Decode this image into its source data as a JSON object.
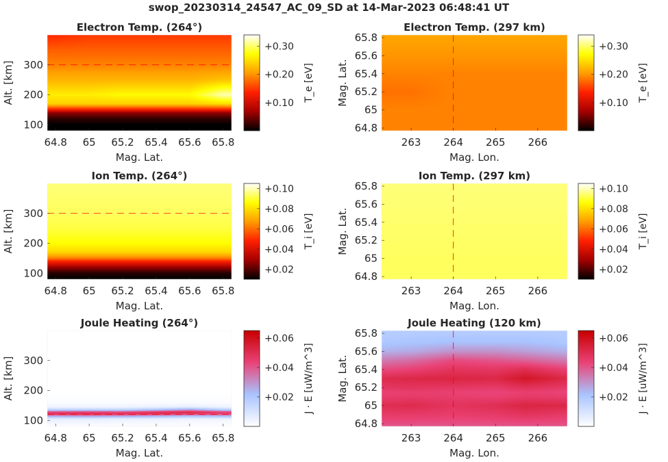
{
  "suptitle": "swop_20230314_24547_AC_09_SD at 14-Mar-2023 06:48:41 UT",
  "colors": {
    "hot_colormap": [
      "#000000",
      "#a50000",
      "#ff2000",
      "#ff9d00",
      "#ffff00",
      "#ffffff"
    ],
    "joule_colormap": [
      "#ffffff",
      "#a9c4ff",
      "#ea4377",
      "#c80000"
    ],
    "reference_line": "#ff0000"
  },
  "chart_data": [
    {
      "type": "heatmap",
      "title": "Electron Temp. (264°)",
      "xlabel": "Mag. Lat.",
      "ylabel": "Alt. [km]",
      "xlim": [
        64.75,
        65.85
      ],
      "ylim": [
        80,
        400
      ],
      "xticks": [
        "64.8",
        "65",
        "65.2",
        "65.4",
        "65.6",
        "65.8"
      ],
      "xtick_values": [
        64.8,
        65.0,
        65.2,
        65.4,
        65.6,
        65.8
      ],
      "yticks": [
        "100",
        "200",
        "300"
      ],
      "ytick_values": [
        100,
        200,
        300
      ],
      "reference_line": {
        "orientation": "horizontal",
        "value": 300
      },
      "colorbar": {
        "label": "T_e [eV]",
        "range": [
          0.0,
          0.34
        ],
        "ticks": [
          "+0.10",
          "+0.20",
          "+0.30"
        ],
        "tick_values": [
          0.1,
          0.2,
          0.3
        ],
        "colormap": "hot"
      },
      "field": {
        "x": [
          64.8,
          65.0,
          65.2,
          65.4,
          65.6,
          65.8
        ],
        "y": [
          400,
          350,
          300,
          250,
          200,
          170,
          150,
          140,
          120,
          100,
          80
        ],
        "z": [
          [
            0.14,
            0.15,
            0.15,
            0.15,
            0.15,
            0.15
          ],
          [
            0.17,
            0.17,
            0.17,
            0.17,
            0.17,
            0.17
          ],
          [
            0.19,
            0.19,
            0.19,
            0.19,
            0.19,
            0.19
          ],
          [
            0.22,
            0.22,
            0.22,
            0.22,
            0.22,
            0.23
          ],
          [
            0.26,
            0.26,
            0.27,
            0.27,
            0.27,
            0.32
          ],
          [
            0.24,
            0.24,
            0.24,
            0.24,
            0.24,
            0.25
          ],
          [
            0.13,
            0.13,
            0.13,
            0.13,
            0.13,
            0.13
          ],
          [
            0.06,
            0.06,
            0.06,
            0.06,
            0.06,
            0.06
          ],
          [
            0.02,
            0.02,
            0.02,
            0.02,
            0.02,
            0.02
          ],
          [
            0.0,
            0.0,
            0.0,
            0.0,
            0.0,
            0.0
          ],
          [
            0.0,
            0.0,
            0.0,
            0.0,
            0.0,
            0.0
          ]
        ]
      }
    },
    {
      "type": "heatmap",
      "title": "Electron Temp. (297 km)",
      "xlabel": "Mag. Lon.",
      "ylabel": "Mag. Lat.",
      "xlim": [
        262.3,
        266.7
      ],
      "ylim": [
        64.77,
        65.83
      ],
      "xticks": [
        "263",
        "264",
        "265",
        "266"
      ],
      "xtick_values": [
        263,
        264,
        265,
        266
      ],
      "yticks": [
        "64.8",
        "65",
        "65.2",
        "65.4",
        "65.6",
        "65.8"
      ],
      "ytick_values": [
        64.8,
        65.0,
        65.2,
        65.4,
        65.6,
        65.8
      ],
      "reference_line": {
        "orientation": "vertical",
        "value": 264
      },
      "colorbar": {
        "label": "T_e [eV]",
        "range": [
          0.0,
          0.34
        ],
        "ticks": [
          "+0.10",
          "+0.20",
          "+0.30"
        ],
        "tick_values": [
          0.1,
          0.2,
          0.3
        ],
        "colormap": "hot"
      },
      "field": {
        "x": [
          262.3,
          263.0,
          264.0,
          265.0,
          266.0,
          266.7
        ],
        "y": [
          65.83,
          65.6,
          65.4,
          65.2,
          65.0,
          64.77
        ],
        "z": [
          [
            0.21,
            0.21,
            0.21,
            0.21,
            0.21,
            0.21
          ],
          [
            0.2,
            0.2,
            0.2,
            0.2,
            0.2,
            0.2
          ],
          [
            0.19,
            0.19,
            0.19,
            0.19,
            0.19,
            0.19
          ],
          [
            0.18,
            0.18,
            0.19,
            0.19,
            0.19,
            0.19
          ],
          [
            0.19,
            0.19,
            0.19,
            0.19,
            0.19,
            0.19
          ],
          [
            0.19,
            0.19,
            0.19,
            0.19,
            0.19,
            0.19
          ]
        ]
      }
    },
    {
      "type": "heatmap",
      "title": "Ion Temp. (264°)",
      "xlabel": "Mag. Lat.",
      "ylabel": "Alt. [km]",
      "xlim": [
        64.75,
        65.85
      ],
      "ylim": [
        80,
        400
      ],
      "xticks": [
        "64.8",
        "65",
        "65.2",
        "65.4",
        "65.6",
        "65.8"
      ],
      "xtick_values": [
        64.8,
        65.0,
        65.2,
        65.4,
        65.6,
        65.8
      ],
      "yticks": [
        "100",
        "200",
        "300"
      ],
      "ytick_values": [
        100,
        200,
        300
      ],
      "reference_line": {
        "orientation": "horizontal",
        "value": 300
      },
      "colorbar": {
        "label": "T_i [eV]",
        "range": [
          0.01,
          0.105
        ],
        "ticks": [
          "+0.02",
          "+0.04",
          "+0.06",
          "+0.08",
          "+0.10"
        ],
        "tick_values": [
          0.02,
          0.04,
          0.06,
          0.08,
          0.1
        ],
        "colormap": "hot"
      },
      "field": {
        "x": [
          64.8,
          65.0,
          65.2,
          65.4,
          65.6,
          65.8
        ],
        "y": [
          400,
          300,
          250,
          200,
          170,
          150,
          140,
          120,
          100,
          80
        ],
        "z": [
          [
            0.095,
            0.095,
            0.095,
            0.095,
            0.095,
            0.095
          ],
          [
            0.093,
            0.093,
            0.093,
            0.093,
            0.093,
            0.093
          ],
          [
            0.091,
            0.091,
            0.091,
            0.091,
            0.091,
            0.091
          ],
          [
            0.086,
            0.086,
            0.086,
            0.086,
            0.086,
            0.086
          ],
          [
            0.078,
            0.078,
            0.078,
            0.078,
            0.078,
            0.078
          ],
          [
            0.062,
            0.062,
            0.062,
            0.062,
            0.062,
            0.062
          ],
          [
            0.048,
            0.048,
            0.048,
            0.048,
            0.048,
            0.048
          ],
          [
            0.028,
            0.028,
            0.028,
            0.028,
            0.028,
            0.028
          ],
          [
            0.014,
            0.014,
            0.014,
            0.014,
            0.014,
            0.014
          ],
          [
            0.01,
            0.01,
            0.01,
            0.01,
            0.01,
            0.01
          ]
        ]
      }
    },
    {
      "type": "heatmap",
      "title": "Ion Temp. (297 km)",
      "xlabel": "Mag. Lon.",
      "ylabel": "Mag. Lat.",
      "xlim": [
        262.3,
        266.7
      ],
      "ylim": [
        64.77,
        65.83
      ],
      "xticks": [
        "263",
        "264",
        "265",
        "266"
      ],
      "xtick_values": [
        263,
        264,
        265,
        266
      ],
      "yticks": [
        "64.8",
        "65",
        "65.2",
        "65.4",
        "65.6",
        "65.8"
      ],
      "ytick_values": [
        64.8,
        65.0,
        65.2,
        65.4,
        65.6,
        65.8
      ],
      "reference_line": {
        "orientation": "vertical",
        "value": 264
      },
      "colorbar": {
        "label": "T_i [eV]",
        "range": [
          0.01,
          0.105
        ],
        "ticks": [
          "+0.02",
          "+0.04",
          "+0.06",
          "+0.08",
          "+0.10"
        ],
        "tick_values": [
          0.02,
          0.04,
          0.06,
          0.08,
          0.1
        ],
        "colormap": "hot"
      },
      "field": {
        "x": [
          262.3,
          263.0,
          264.0,
          265.0,
          266.0,
          266.7
        ],
        "y": [
          65.83,
          65.4,
          65.0,
          64.77
        ],
        "z": [
          [
            0.095,
            0.095,
            0.095,
            0.095,
            0.095,
            0.095
          ],
          [
            0.094,
            0.094,
            0.094,
            0.094,
            0.094,
            0.094
          ],
          [
            0.093,
            0.093,
            0.093,
            0.093,
            0.093,
            0.093
          ],
          [
            0.093,
            0.093,
            0.093,
            0.093,
            0.093,
            0.093
          ]
        ]
      }
    },
    {
      "type": "heatmap",
      "title": "Joule Heating (264°)",
      "xlabel": "Mag. Lat.",
      "ylabel": "Alt. [km]",
      "xlim": [
        64.75,
        65.85
      ],
      "ylim": [
        80,
        400
      ],
      "xticks": [
        "64.8",
        "65",
        "65.2",
        "65.4",
        "65.6",
        "65.8"
      ],
      "xtick_values": [
        64.8,
        65.0,
        65.2,
        65.4,
        65.6,
        65.8
      ],
      "yticks": [
        "100",
        "200",
        "300"
      ],
      "ytick_values": [
        100,
        200,
        300
      ],
      "reference_line": {
        "orientation": "horizontal",
        "value": 120
      },
      "colorbar": {
        "label": "J · E [uW/m^3]",
        "range": [
          0.0,
          0.065
        ],
        "ticks": [
          "+0.02",
          "+0.04",
          "+0.06"
        ],
        "tick_values": [
          0.02,
          0.04,
          0.06
        ],
        "colormap": "joule"
      },
      "field": {
        "x": [
          64.8,
          65.0,
          65.2,
          65.4,
          65.6,
          65.8
        ],
        "y": [
          400,
          200,
          160,
          145,
          135,
          128,
          122,
          115,
          105,
          80
        ],
        "z": [
          [
            0.0,
            0.0,
            0.0,
            0.0,
            0.0,
            0.0
          ],
          [
            0.0,
            0.0,
            0.0,
            0.0,
            0.0,
            0.0
          ],
          [
            0.001,
            0.001,
            0.001,
            0.001,
            0.001,
            0.001
          ],
          [
            0.004,
            0.004,
            0.004,
            0.005,
            0.006,
            0.004
          ],
          [
            0.016,
            0.017,
            0.016,
            0.022,
            0.03,
            0.018
          ],
          [
            0.043,
            0.044,
            0.042,
            0.048,
            0.052,
            0.044
          ],
          [
            0.05,
            0.051,
            0.049,
            0.05,
            0.046,
            0.045
          ],
          [
            0.028,
            0.03,
            0.028,
            0.026,
            0.022,
            0.024
          ],
          [
            0.006,
            0.006,
            0.005,
            0.005,
            0.004,
            0.004
          ],
          [
            0.0,
            0.0,
            0.0,
            0.0,
            0.0,
            0.0
          ]
        ]
      }
    },
    {
      "type": "heatmap",
      "title": "Joule Heating (120 km)",
      "xlabel": "Mag. Lon.",
      "ylabel": "Mag. Lat.",
      "xlim": [
        262.3,
        266.7
      ],
      "ylim": [
        64.77,
        65.83
      ],
      "xticks": [
        "263",
        "264",
        "265",
        "266"
      ],
      "xtick_values": [
        263,
        264,
        265,
        266
      ],
      "yticks": [
        "64.8",
        "65",
        "65.2",
        "65.4",
        "65.6",
        "65.8"
      ],
      "ytick_values": [
        64.8,
        65.0,
        65.2,
        65.4,
        65.6,
        65.8
      ],
      "reference_line": {
        "orientation": "vertical",
        "value": 264
      },
      "colorbar": {
        "label": "J · E [uW/m^3]",
        "range": [
          0.0,
          0.065
        ],
        "ticks": [
          "+0.02",
          "+0.04",
          "+0.06"
        ],
        "tick_values": [
          0.02,
          0.04,
          0.06
        ],
        "colormap": "joule"
      },
      "field": {
        "x": [
          262.3,
          263.0,
          264.0,
          265.0,
          265.7,
          266.7
        ],
        "y": [
          65.83,
          65.7,
          65.6,
          65.5,
          65.4,
          65.3,
          65.2,
          65.15,
          65.1,
          65.0,
          64.9,
          64.77
        ],
        "z": [
          [
            0.018,
            0.018,
            0.018,
            0.018,
            0.018,
            0.018
          ],
          [
            0.02,
            0.021,
            0.022,
            0.022,
            0.022,
            0.02
          ],
          [
            0.025,
            0.026,
            0.03,
            0.03,
            0.028,
            0.025
          ],
          [
            0.034,
            0.036,
            0.042,
            0.04,
            0.038,
            0.034
          ],
          [
            0.042,
            0.044,
            0.048,
            0.047,
            0.05,
            0.044
          ],
          [
            0.051,
            0.052,
            0.053,
            0.052,
            0.058,
            0.052
          ],
          [
            0.047,
            0.048,
            0.047,
            0.046,
            0.049,
            0.046
          ],
          [
            0.044,
            0.045,
            0.044,
            0.043,
            0.045,
            0.043
          ],
          [
            0.045,
            0.046,
            0.045,
            0.044,
            0.046,
            0.045
          ],
          [
            0.05,
            0.051,
            0.048,
            0.05,
            0.053,
            0.052
          ],
          [
            0.046,
            0.046,
            0.045,
            0.046,
            0.048,
            0.046
          ],
          [
            0.04,
            0.04,
            0.04,
            0.04,
            0.04,
            0.04
          ]
        ]
      }
    }
  ]
}
